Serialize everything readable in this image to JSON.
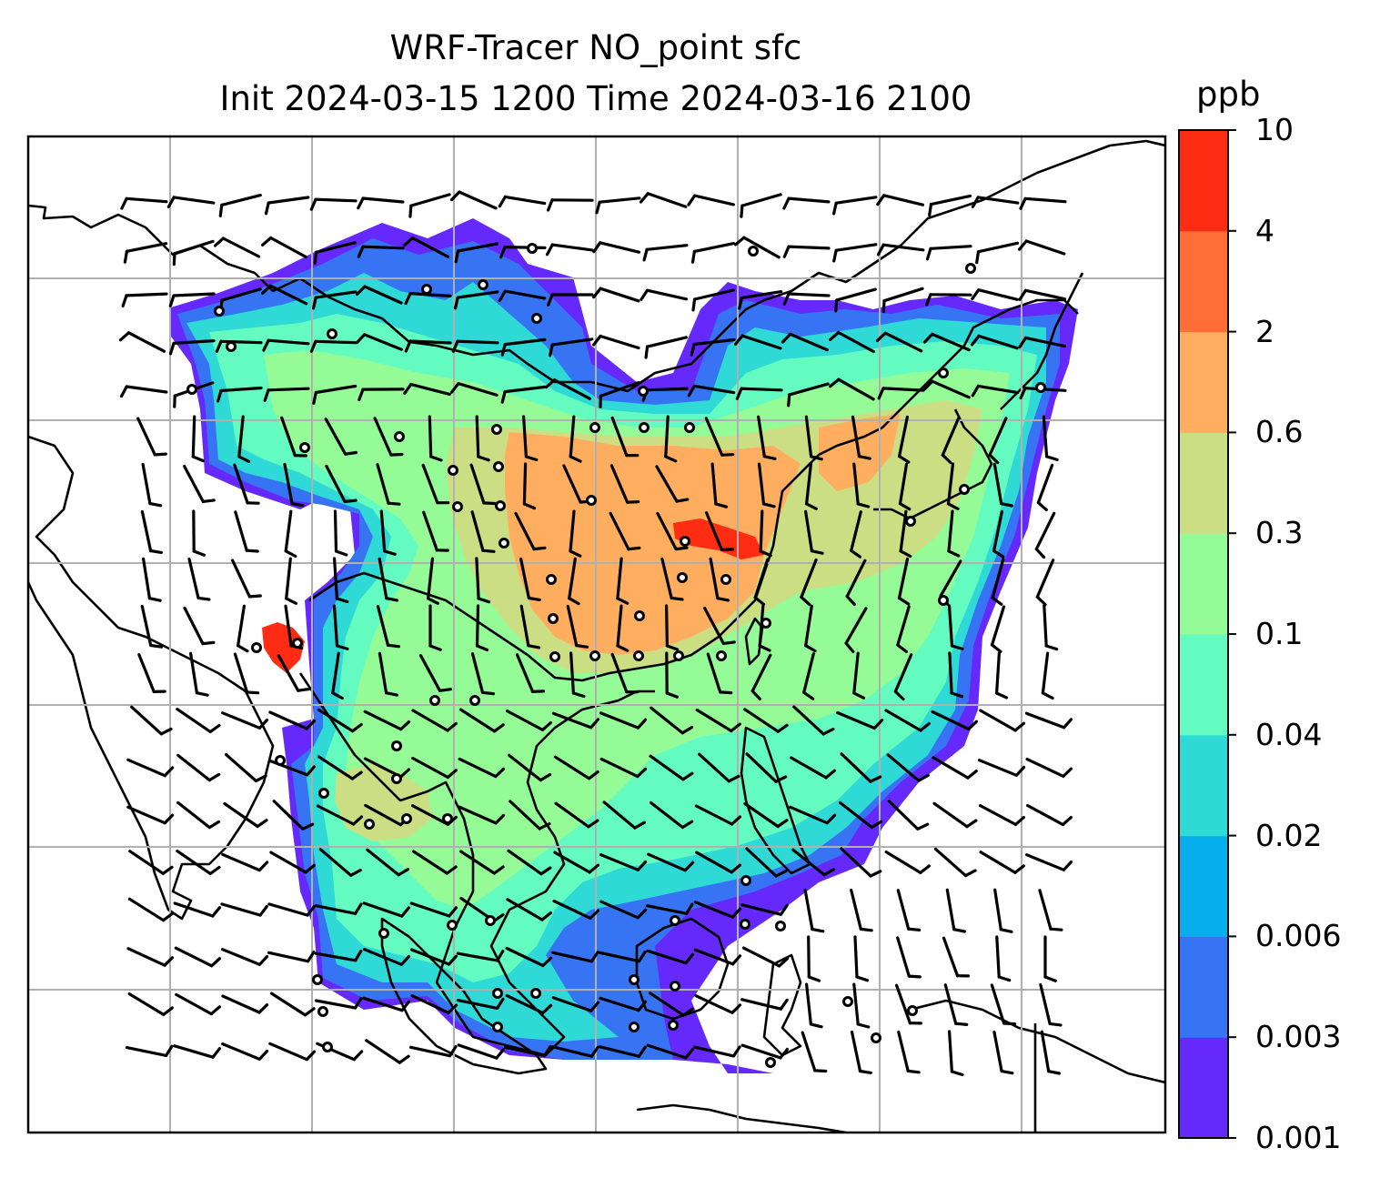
{
  "title_line1": "WRF-Tracer NO_point sfc",
  "title_line2": "Init 2024-03-15 1200 Time 2024-03-16 2100",
  "colorbar": {
    "unit": "ppb",
    "ticks": [
      "0.001",
      "0.003",
      "0.006",
      "0.02",
      "0.04",
      "0.1",
      "0.3",
      "0.6",
      "2",
      "4",
      "10"
    ],
    "colors": [
      "#6629fb",
      "#3674f3",
      "#07b0ec",
      "#2ed9d6",
      "#64fbc1",
      "#94fb96",
      "#ccde83",
      "#ffad5f",
      "#ff6e37",
      "#ff2c14"
    ]
  },
  "plume_colors": {
    "edge": "#6629fb",
    "low": "#3674f3",
    "cyan": "#2ed9d6",
    "aqua": "#64fbc1",
    "green": "#94fb96",
    "olive": "#ccde83",
    "orange": "#ffad5f",
    "red": "#ff2c14"
  },
  "gridline_color": "#b0b0b0",
  "coastline_color": "#000000",
  "overlay": "wind barbs and calm circles"
}
